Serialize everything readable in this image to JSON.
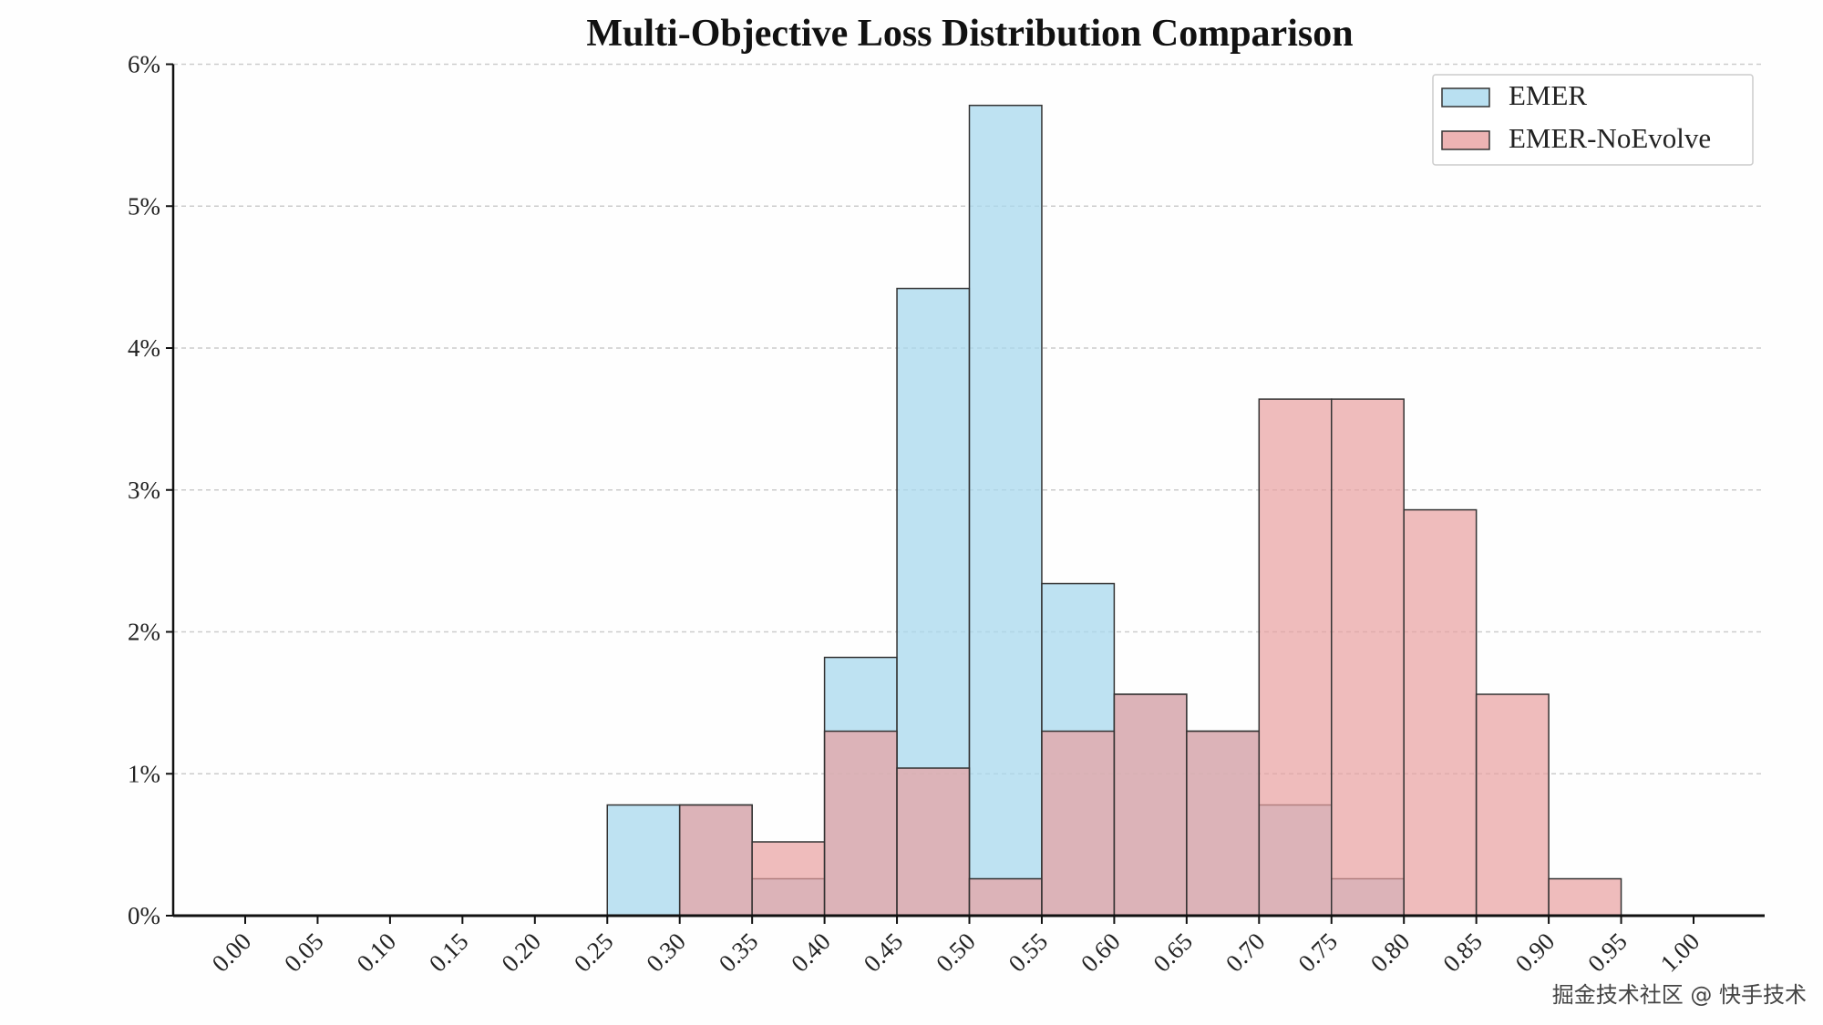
{
  "chart_data": {
    "type": "bar",
    "title": "Multi-Objective Loss Distribution Comparison",
    "xlabel": "",
    "ylabel": "",
    "bin_edges": [
      0.0,
      0.05,
      0.1,
      0.15,
      0.2,
      0.25,
      0.3,
      0.35,
      0.4,
      0.45,
      0.5,
      0.55,
      0.6,
      0.65,
      0.7,
      0.75,
      0.8,
      0.85,
      0.9,
      0.95,
      1.0
    ],
    "x_tick_labels": [
      "0.00",
      "0.05",
      "0.10",
      "0.15",
      "0.20",
      "0.25",
      "0.30",
      "0.35",
      "0.40",
      "0.45",
      "0.50",
      "0.55",
      "0.60",
      "0.65",
      "0.70",
      "0.75",
      "0.80",
      "0.85",
      "0.90",
      "0.95",
      "1.00"
    ],
    "y_tick_labels": [
      "0%",
      "1%",
      "2%",
      "3%",
      "4%",
      "5%",
      "6%"
    ],
    "xlim": [
      -0.05,
      1.05
    ],
    "ylim": [
      0,
      6
    ],
    "y_unit": "percent",
    "grid": "horizontal dashed",
    "legend_placement": "top-right",
    "series": [
      {
        "name": "EMER",
        "color": "#a8d8ee",
        "values": [
          0,
          0,
          0,
          0,
          0,
          0.78,
          0.78,
          0.26,
          1.82,
          4.42,
          5.71,
          2.34,
          1.56,
          1.3,
          0.78,
          0.26,
          0,
          0,
          0,
          0
        ]
      },
      {
        "name": "EMER-NoEvolve",
        "color": "#e8a0a0",
        "values": [
          0,
          0,
          0,
          0,
          0,
          0,
          0.78,
          0.52,
          1.3,
          1.04,
          0.26,
          1.3,
          1.56,
          1.3,
          3.64,
          3.64,
          2.86,
          1.56,
          0.26,
          0
        ]
      }
    ]
  },
  "watermark": "掘金技术社区 @ 快手技术"
}
